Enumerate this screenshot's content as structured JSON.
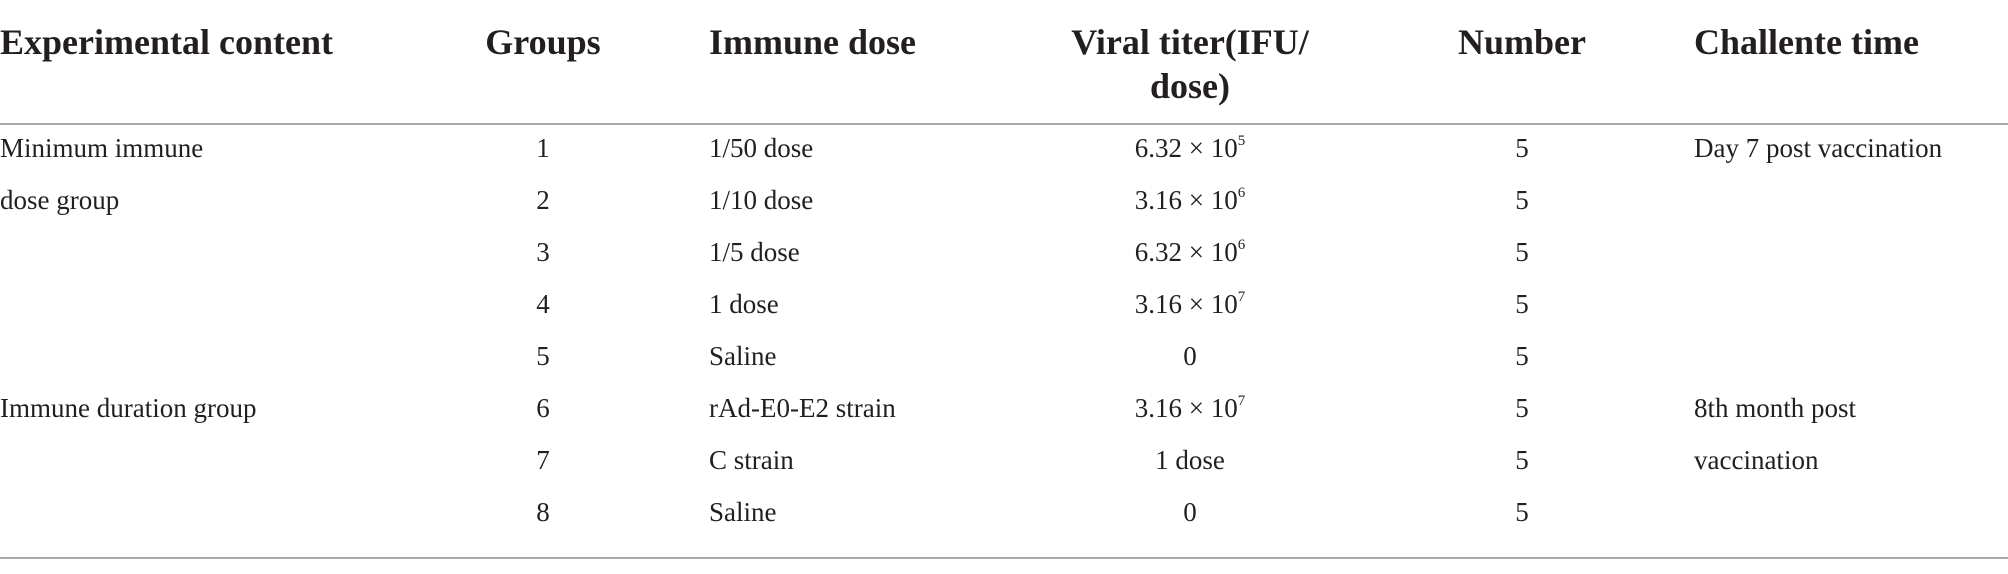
{
  "table": {
    "headers": {
      "experimental_content": "Experimental content",
      "groups": "Groups",
      "immune_dose": "Immune dose",
      "viral_titer_line1": "Viral titer(IFU/",
      "viral_titer_line2": "dose)",
      "number": "Number",
      "challenge_time": "Challente time"
    },
    "rows": [
      {
        "content": "Minimum immune",
        "group": "1",
        "dose": "1/50 dose",
        "titer_base": "6.32 × 10",
        "titer_exp": "5",
        "number": "5",
        "time": "Day 7 post vaccination"
      },
      {
        "content": "dose group",
        "group": "2",
        "dose": "1/10 dose",
        "titer_base": "3.16 × 10",
        "titer_exp": "6",
        "number": "5",
        "time": ""
      },
      {
        "content": "",
        "group": "3",
        "dose": "1/5 dose",
        "titer_base": "6.32 × 10",
        "titer_exp": "6",
        "number": "5",
        "time": ""
      },
      {
        "content": "",
        "group": "4",
        "dose": "1 dose",
        "titer_base": "3.16 × 10",
        "titer_exp": "7",
        "number": "5",
        "time": ""
      },
      {
        "content": "",
        "group": "5",
        "dose": "Saline",
        "titer_base": "0",
        "titer_exp": "",
        "number": "5",
        "time": ""
      },
      {
        "content": "Immune duration group",
        "group": "6",
        "dose": "rAd-E0-E2 strain",
        "titer_base": "3.16 × 10",
        "titer_exp": "7",
        "number": "5",
        "time": "8th month post"
      },
      {
        "content": "",
        "group": "7",
        "dose": "C strain",
        "titer_base": "1 dose",
        "titer_exp": "",
        "number": "5",
        "time": "vaccination"
      },
      {
        "content": "",
        "group": "8",
        "dose": "Saline",
        "titer_base": "0",
        "titer_exp": "",
        "number": "5",
        "time": ""
      }
    ]
  }
}
